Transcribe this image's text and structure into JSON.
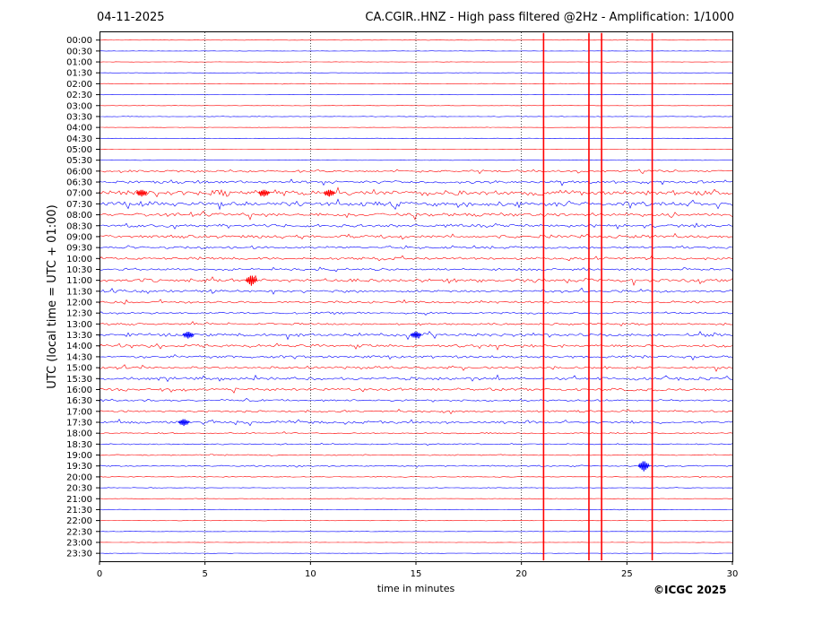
{
  "header": {
    "date": "04-11-2025",
    "title": "CA.CGIR..HNZ - High pass filtered @2Hz - Amplification: 1/1000"
  },
  "footer": {
    "credit": "©ICGC 2025"
  },
  "colors": {
    "red": "#ff0000",
    "blue": "#0000ff"
  },
  "chart_data": {
    "type": "line",
    "xlabel": "time in minutes",
    "ylabel": "UTC (local time = UTC + 01:00)",
    "xlim": [
      0,
      30
    ],
    "x_ticks": [
      "0",
      "5",
      "10",
      "15",
      "20",
      "25",
      "30"
    ],
    "grid": "vertical dotted at 5 minute intervals",
    "rows": [
      "00:00",
      "00:30",
      "01:00",
      "01:30",
      "02:00",
      "02:30",
      "03:00",
      "03:30",
      "04:00",
      "04:30",
      "05:00",
      "05:30",
      "06:00",
      "06:30",
      "07:00",
      "07:30",
      "08:00",
      "08:30",
      "09:00",
      "09:30",
      "10:00",
      "10:30",
      "11:00",
      "11:30",
      "12:00",
      "12:30",
      "13:00",
      "13:30",
      "14:00",
      "14:30",
      "15:00",
      "15:30",
      "16:00",
      "16:30",
      "17:00",
      "17:30",
      "18:00",
      "18:30",
      "19:00",
      "19:30",
      "20:00",
      "20:30",
      "21:00",
      "21:30",
      "22:00",
      "22:30",
      "23:00",
      "23:30"
    ],
    "row_colors": [
      "red",
      "blue"
    ],
    "noise_level": [
      0.2,
      0.2,
      0.2,
      0.2,
      0.3,
      0.2,
      0.2,
      0.3,
      0.2,
      0.2,
      0.2,
      0.2,
      1.0,
      1.5,
      2.5,
      2.2,
      1.8,
      1.5,
      1.6,
      1.3,
      1.3,
      1.2,
      1.8,
      1.3,
      1.2,
      1.0,
      1.0,
      1.6,
      1.5,
      1.3,
      1.3,
      1.5,
      1.4,
      1.0,
      1.0,
      1.3,
      0.7,
      0.6,
      0.6,
      0.7,
      0.4,
      0.3,
      0.3,
      0.3,
      0.3,
      0.2,
      0.2,
      0.2
    ],
    "events": [
      {
        "row": "07:00",
        "minute": 2.0,
        "amplitude": 4
      },
      {
        "row": "07:00",
        "minute": 7.8,
        "amplitude": 4
      },
      {
        "row": "07:00",
        "minute": 10.9,
        "amplitude": 4
      },
      {
        "row": "11:00",
        "minute": 7.2,
        "amplitude": 6
      },
      {
        "row": "13:30",
        "minute": 4.2,
        "amplitude": 4
      },
      {
        "row": "13:30",
        "minute": 15.0,
        "amplitude": 4
      },
      {
        "row": "17:30",
        "minute": 4.0,
        "amplitude": 4
      },
      {
        "row": "19:30",
        "minute": 25.8,
        "amplitude": 6
      }
    ],
    "vertical_marks": [
      {
        "minute": 21.05,
        "from_row": "00:00",
        "to_row": "23:30"
      },
      {
        "minute": 23.2,
        "from_row": "00:00",
        "to_row": "23:30"
      },
      {
        "minute": 23.8,
        "from_row": "00:00",
        "to_row": "23:30"
      },
      {
        "minute": 26.2,
        "from_row": "00:00",
        "to_row": "23:30"
      }
    ]
  }
}
